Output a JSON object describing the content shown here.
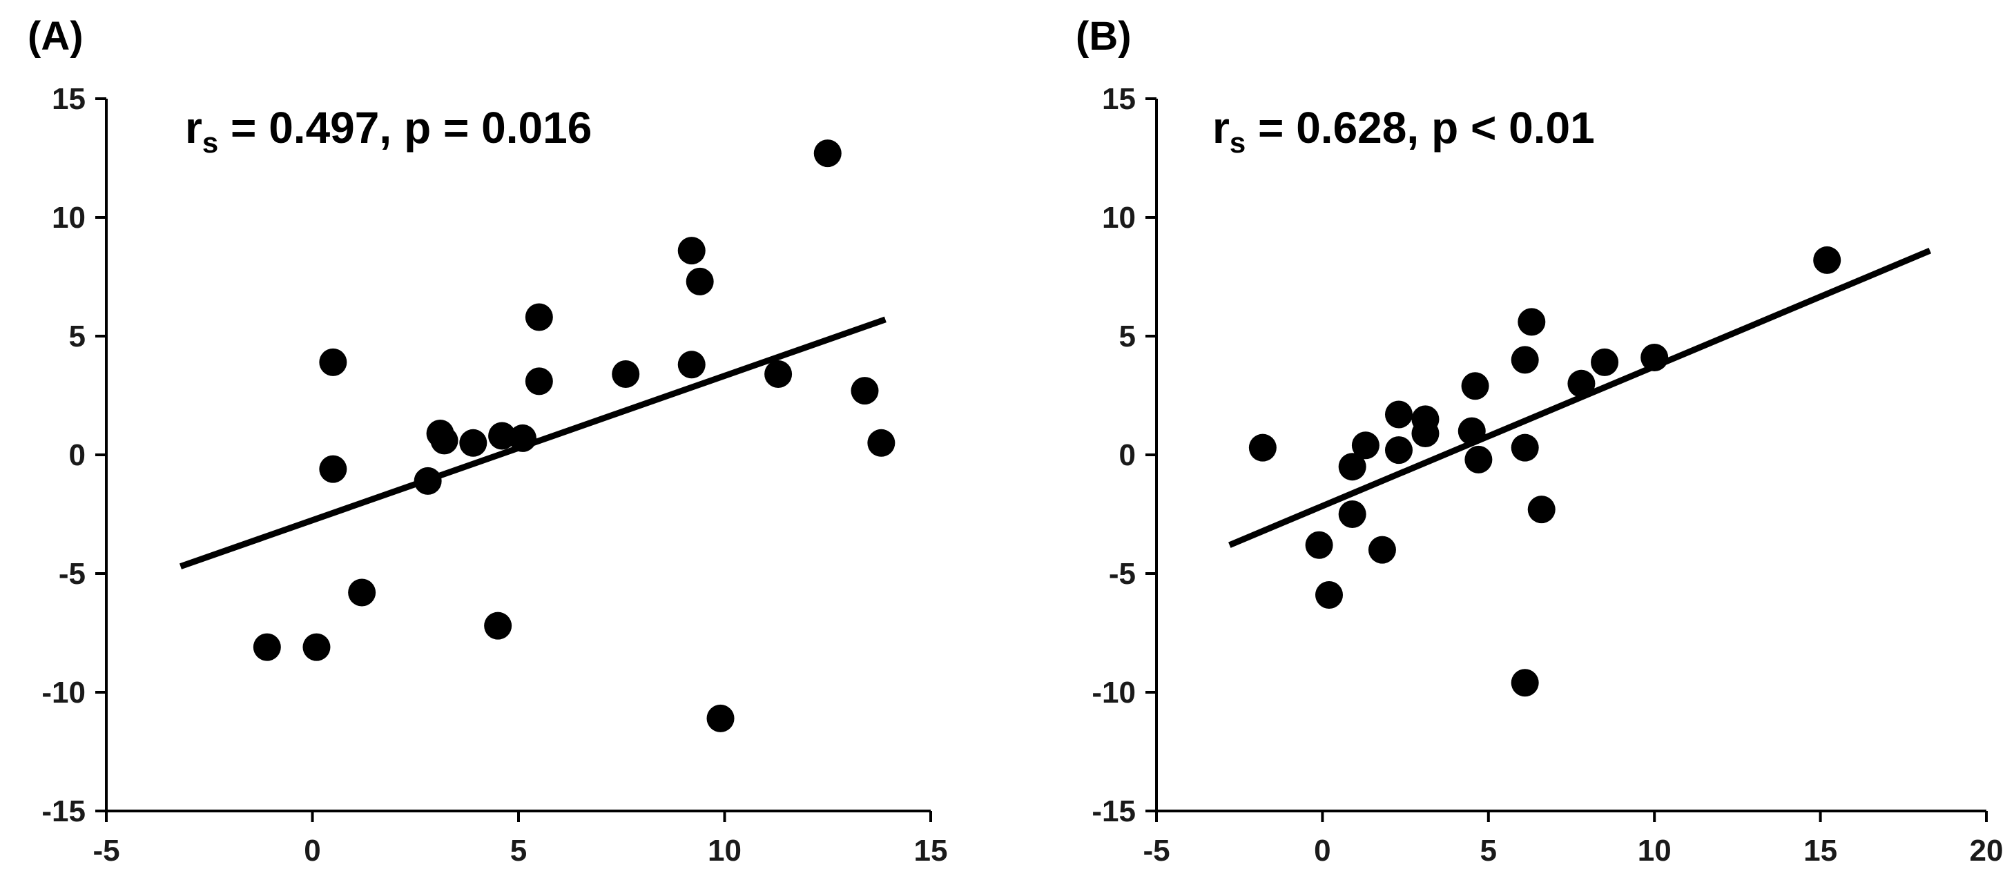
{
  "colors": {
    "marker": "#000000",
    "axis": "#000000",
    "text": "#1a1a1a",
    "background": "#ffffff"
  },
  "chart_data": [
    {
      "type": "scatter",
      "panel_label": "(A)",
      "stat": {
        "r_prefix": "r",
        "r_sub": "s",
        "r_value": " = 0.497,",
        "p_text": "p = 0.016"
      },
      "xlim": [
        -5,
        15
      ],
      "ylim": [
        -15,
        15
      ],
      "xticks": [
        -5,
        0,
        5,
        10,
        15
      ],
      "yticks": [
        -15,
        -10,
        -5,
        0,
        5,
        10,
        15
      ],
      "xtick_labels": [
        "-5",
        "0",
        "5",
        "10",
        "15"
      ],
      "ytick_labels": [
        "-15",
        "-10",
        "-5",
        "0",
        "5",
        "10",
        "15"
      ],
      "grid": false,
      "points": [
        {
          "x": -1.1,
          "y": -8.1
        },
        {
          "x": 0.1,
          "y": -8.1
        },
        {
          "x": 0.5,
          "y": 3.9
        },
        {
          "x": 0.5,
          "y": -0.6
        },
        {
          "x": 1.2,
          "y": -5.8
        },
        {
          "x": 2.8,
          "y": -1.1
        },
        {
          "x": 3.1,
          "y": 0.9
        },
        {
          "x": 3.2,
          "y": 0.6
        },
        {
          "x": 3.9,
          "y": 0.5
        },
        {
          "x": 4.5,
          "y": -7.2
        },
        {
          "x": 4.6,
          "y": 0.8
        },
        {
          "x": 5.1,
          "y": 0.7
        },
        {
          "x": 5.5,
          "y": 5.8
        },
        {
          "x": 5.5,
          "y": 3.1
        },
        {
          "x": 7.6,
          "y": 3.4
        },
        {
          "x": 9.2,
          "y": 8.6
        },
        {
          "x": 9.4,
          "y": 7.3
        },
        {
          "x": 9.2,
          "y": 3.8
        },
        {
          "x": 9.9,
          "y": -11.1
        },
        {
          "x": 11.3,
          "y": 3.4
        },
        {
          "x": 12.5,
          "y": 12.7
        },
        {
          "x": 13.4,
          "y": 2.7
        },
        {
          "x": 13.8,
          "y": 0.5
        }
      ],
      "trendline": {
        "x": [
          -3.2,
          13.9
        ],
        "y": [
          -4.7,
          5.7
        ]
      }
    },
    {
      "type": "scatter",
      "panel_label": "(B)",
      "stat": {
        "r_prefix": "r",
        "r_sub": "s",
        "r_value": " = 0.628,",
        "p_text": "p < 0.01"
      },
      "xlim": [
        -5,
        20
      ],
      "ylim": [
        -15,
        15
      ],
      "xticks": [
        -5,
        0,
        5,
        10,
        15,
        20
      ],
      "yticks": [
        -15,
        -10,
        -5,
        0,
        5,
        10,
        15
      ],
      "xtick_labels": [
        "-5",
        "0",
        "5",
        "10",
        "15",
        "20"
      ],
      "ytick_labels": [
        "-15",
        "-10",
        "-5",
        "0",
        "5",
        "10",
        "15"
      ],
      "grid": false,
      "points": [
        {
          "x": -1.8,
          "y": 0.3
        },
        {
          "x": -0.1,
          "y": -3.8
        },
        {
          "x": 0.2,
          "y": -5.9
        },
        {
          "x": 0.9,
          "y": -0.5
        },
        {
          "x": 0.9,
          "y": -2.5
        },
        {
          "x": 1.3,
          "y": 0.4
        },
        {
          "x": 1.8,
          "y": -4.0
        },
        {
          "x": 2.3,
          "y": 1.7
        },
        {
          "x": 2.3,
          "y": 0.2
        },
        {
          "x": 3.1,
          "y": 1.5
        },
        {
          "x": 3.1,
          "y": 0.9
        },
        {
          "x": 4.5,
          "y": 1.0
        },
        {
          "x": 4.6,
          "y": 2.9
        },
        {
          "x": 4.7,
          "y": -0.2
        },
        {
          "x": 6.1,
          "y": 4.0
        },
        {
          "x": 6.1,
          "y": 0.3
        },
        {
          "x": 6.3,
          "y": 5.6
        },
        {
          "x": 6.1,
          "y": -9.6
        },
        {
          "x": 6.6,
          "y": -2.3
        },
        {
          "x": 7.8,
          "y": 3.0
        },
        {
          "x": 8.5,
          "y": 3.9
        },
        {
          "x": 10.0,
          "y": 4.1
        },
        {
          "x": 15.2,
          "y": 8.2
        }
      ],
      "trendline": {
        "x": [
          -2.8,
          18.3
        ],
        "y": [
          -3.8,
          8.6
        ]
      }
    }
  ]
}
